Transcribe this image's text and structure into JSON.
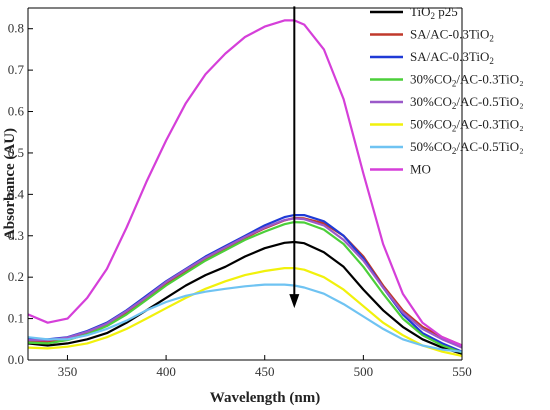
{
  "chart_data": {
    "type": "line",
    "title": "",
    "xlabel": "Wavelength (nm)",
    "ylabel": "Absorbance (AU)",
    "xlim": [
      330,
      550
    ],
    "ylim": [
      0,
      0.85
    ],
    "x_ticks": [
      350,
      400,
      450,
      500,
      550
    ],
    "y_ticks": [
      0.0,
      0.1,
      0.2,
      0.3,
      0.4,
      0.5,
      0.6,
      0.7,
      0.8
    ],
    "legend_position": "top-right",
    "grid": false,
    "annotation": {
      "type": "arrow",
      "x": 465,
      "y_from": 0.82,
      "y_to": 0.13,
      "direction": "down"
    },
    "series": [
      {
        "name_main": "TiO",
        "name_sub": "2",
        "name_tail": " p25",
        "color": "#000000",
        "x": [
          330,
          340,
          350,
          360,
          370,
          380,
          390,
          400,
          410,
          420,
          430,
          440,
          450,
          460,
          465,
          470,
          480,
          490,
          500,
          510,
          520,
          530,
          540,
          550
        ],
        "y": [
          0.04,
          0.035,
          0.04,
          0.05,
          0.065,
          0.09,
          0.12,
          0.15,
          0.18,
          0.205,
          0.225,
          0.25,
          0.27,
          0.283,
          0.285,
          0.282,
          0.26,
          0.225,
          0.17,
          0.12,
          0.08,
          0.05,
          0.03,
          0.015
        ]
      },
      {
        "name_main": "SA/AC-0.3TiO",
        "name_sub": "2",
        "name_tail": "",
        "color": "#c0392b",
        "x": [
          330,
          340,
          350,
          360,
          370,
          380,
          390,
          400,
          410,
          420,
          430,
          440,
          450,
          460,
          465,
          470,
          480,
          490,
          500,
          510,
          520,
          530,
          540,
          550
        ],
        "y": [
          0.045,
          0.045,
          0.052,
          0.065,
          0.085,
          0.115,
          0.15,
          0.185,
          0.215,
          0.245,
          0.27,
          0.295,
          0.318,
          0.337,
          0.343,
          0.342,
          0.33,
          0.3,
          0.25,
          0.18,
          0.12,
          0.08,
          0.055,
          0.035
        ]
      },
      {
        "name_main": "SA/AC-0.3TiO",
        "name_sub": "2",
        "name_tail": "",
        "color": "#1f3ad6",
        "x": [
          330,
          340,
          350,
          360,
          370,
          380,
          390,
          400,
          410,
          420,
          430,
          440,
          450,
          460,
          465,
          470,
          480,
          490,
          500,
          510,
          520,
          530,
          540,
          550
        ],
        "y": [
          0.05,
          0.05,
          0.055,
          0.07,
          0.09,
          0.12,
          0.155,
          0.19,
          0.22,
          0.25,
          0.275,
          0.3,
          0.325,
          0.345,
          0.35,
          0.35,
          0.335,
          0.3,
          0.245,
          0.175,
          0.11,
          0.065,
          0.04,
          0.02
        ]
      },
      {
        "name_main": "30%CO",
        "name_sub": "2",
        "name_tail": "/AC-0.3TiO₂",
        "color": "#4ccf3a",
        "x": [
          330,
          340,
          350,
          360,
          370,
          380,
          390,
          400,
          410,
          420,
          430,
          440,
          450,
          460,
          465,
          470,
          480,
          490,
          500,
          510,
          520,
          530,
          540,
          550
        ],
        "y": [
          0.042,
          0.04,
          0.048,
          0.062,
          0.082,
          0.11,
          0.145,
          0.18,
          0.21,
          0.24,
          0.265,
          0.29,
          0.31,
          0.328,
          0.333,
          0.332,
          0.315,
          0.28,
          0.225,
          0.16,
          0.1,
          0.06,
          0.035,
          0.018
        ]
      },
      {
        "name_main": "30%CO",
        "name_sub": "2",
        "name_tail": "/AC-0.5TiO₂",
        "color": "#9b59c9",
        "x": [
          330,
          340,
          350,
          360,
          370,
          380,
          390,
          400,
          410,
          420,
          430,
          440,
          450,
          460,
          465,
          470,
          480,
          490,
          500,
          510,
          520,
          530,
          540,
          550
        ],
        "y": [
          0.048,
          0.048,
          0.054,
          0.068,
          0.088,
          0.118,
          0.152,
          0.188,
          0.218,
          0.247,
          0.272,
          0.297,
          0.32,
          0.338,
          0.342,
          0.34,
          0.325,
          0.29,
          0.24,
          0.175,
          0.115,
          0.075,
          0.05,
          0.03
        ]
      },
      {
        "name_main": "50%CO",
        "name_sub": "2",
        "name_tail": "/AC-0.3TiO₂",
        "color": "#f1f10c",
        "x": [
          330,
          340,
          350,
          360,
          370,
          380,
          390,
          400,
          410,
          420,
          430,
          440,
          450,
          460,
          465,
          470,
          480,
          490,
          500,
          510,
          520,
          530,
          540,
          550
        ],
        "y": [
          0.03,
          0.028,
          0.032,
          0.04,
          0.055,
          0.075,
          0.1,
          0.125,
          0.15,
          0.172,
          0.19,
          0.205,
          0.215,
          0.222,
          0.222,
          0.218,
          0.2,
          0.17,
          0.13,
          0.09,
          0.06,
          0.035,
          0.02,
          0.01
        ]
      },
      {
        "name_main": "50%CO",
        "name_sub": "2",
        "name_tail": "/AC-0.5TiO₂",
        "color": "#6fc3f2",
        "x": [
          330,
          340,
          350,
          360,
          370,
          380,
          390,
          400,
          410,
          420,
          430,
          440,
          450,
          460,
          465,
          470,
          480,
          490,
          500,
          510,
          520,
          530,
          540,
          550
        ],
        "y": [
          0.055,
          0.05,
          0.05,
          0.06,
          0.075,
          0.095,
          0.12,
          0.14,
          0.155,
          0.165,
          0.172,
          0.178,
          0.182,
          0.182,
          0.18,
          0.175,
          0.16,
          0.135,
          0.105,
          0.075,
          0.05,
          0.035,
          0.025,
          0.02
        ]
      },
      {
        "name_main": "MO",
        "name_sub": "",
        "name_tail": "",
        "color": "#d53fd9",
        "x": [
          330,
          340,
          350,
          360,
          370,
          380,
          390,
          400,
          410,
          420,
          430,
          440,
          450,
          460,
          465,
          470,
          480,
          490,
          500,
          510,
          520,
          530,
          540,
          550
        ],
        "y": [
          0.11,
          0.09,
          0.1,
          0.15,
          0.22,
          0.32,
          0.43,
          0.53,
          0.62,
          0.69,
          0.74,
          0.78,
          0.805,
          0.82,
          0.82,
          0.81,
          0.75,
          0.63,
          0.45,
          0.28,
          0.16,
          0.09,
          0.055,
          0.035
        ]
      }
    ]
  }
}
